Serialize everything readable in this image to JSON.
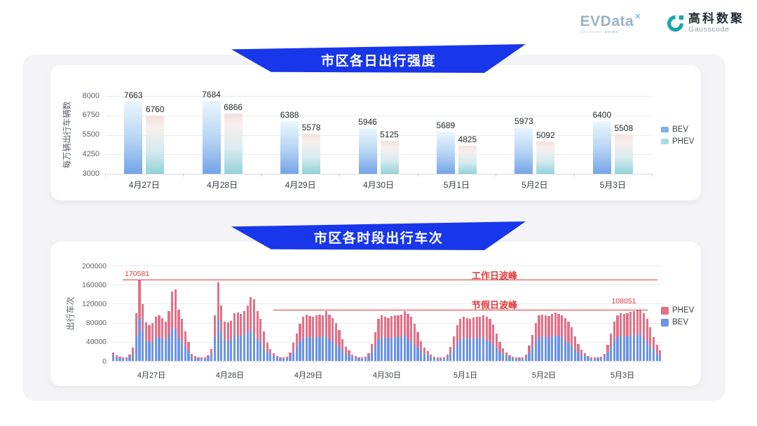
{
  "header": {
    "evdata": {
      "text": "EVData",
      "sup": "✕",
      "sub1": "SHANGHAI",
      "sub2": "CHINA"
    },
    "gausscode": {
      "cn": "高科数聚",
      "en": "Gausscode"
    }
  },
  "colors": {
    "banner_blue": "#1836ea",
    "annotation_red": "#e03a3a",
    "chart1_bev_gradient_top": "#eaf7fc",
    "chart1_bev_gradient_bottom": "#74a4e7",
    "chart1_phev_gradient_top": "#f3e0dc",
    "chart1_phev_gradient_bottom": "#93d2da",
    "legend1_bev": "#7fb0ea",
    "legend1_phev": "#a6dbe0",
    "chart2_bev": "#6b94e4",
    "chart2_phev": "#e17188",
    "gausscode_teal": "#18a6ad"
  },
  "chart_data": [
    {
      "type": "bar",
      "title": "市区各日出行强度",
      "ylabel": "每万辆出行车辆数",
      "categories": [
        "4月27日",
        "4月28日",
        "4月29日",
        "4月30日",
        "5月1日",
        "5月2日",
        "5月3日"
      ],
      "series": [
        {
          "name": "BEV",
          "values": [
            7663,
            7684,
            6388,
            5946,
            5689,
            5973,
            6400
          ]
        },
        {
          "name": "PHEV",
          "values": [
            6760,
            6866,
            5578,
            5125,
            4825,
            5092,
            5508
          ]
        }
      ],
      "ylim": [
        3000,
        8000
      ],
      "yticks": [
        3000,
        4250,
        5500,
        6750,
        8000
      ],
      "legend": [
        "BEV",
        "PHEV"
      ],
      "legend_position": "right",
      "grid": "horizontal"
    },
    {
      "type": "bar",
      "stacked": true,
      "title": "市区各时段出行车次",
      "ylabel": "出行车次",
      "categories": [
        "4月27日",
        "4月28日",
        "4月29日",
        "4月30日",
        "5月1日",
        "5月2日",
        "5月3日"
      ],
      "hours_per_day": 24,
      "ylim": [
        0,
        200000
      ],
      "yticks": [
        0,
        40000,
        80000,
        120000,
        160000,
        200000
      ],
      "legend": [
        "PHEV",
        "BEV"
      ],
      "legend_position": "right",
      "grid": "horizontal",
      "annotations": [
        {
          "label": "工作日波峰",
          "value": 170581,
          "value_label": "170581"
        },
        {
          "label": "节假日波峰",
          "value": 108051,
          "value_label": "108051"
        }
      ],
      "note": "hourly stacked values estimated from chart pixels",
      "series": [
        {
          "name": "BEV",
          "values_by_day": [
            [
              11200,
              7400,
              5600,
              4400,
              5000,
              7800,
              16000,
              52000,
              90000,
              62000,
              42100,
              39000,
              41600,
              48400,
              49900,
              46800,
              42600,
              54100,
              68200,
              67500,
              47500,
              40500,
              29800,
              20000
            ],
            [
              9300,
              6200,
              5000,
              4400,
              5000,
              7200,
              14300,
              49400,
              87500,
              60800,
              42600,
              42100,
              43700,
              52000,
              53000,
              51000,
              54100,
              60800,
              63000,
              58100,
              45800,
              40500,
              29800,
              19000
            ],
            [
              15500,
              9900,
              6800,
              5000,
              4300,
              5400,
              10300,
              19800,
              30700,
              40600,
              47800,
              50400,
              48900,
              47800,
              49400,
              50400,
              49900,
              54600,
              45600,
              40500,
              35200,
              29900,
              21600,
              15000
            ],
            [
              13600,
              8700,
              6200,
              5000,
              4300,
              5400,
              9100,
              18200,
              31800,
              45800,
              49900,
              48400,
              46800,
              48900,
              49900,
              49400,
              50400,
              54600,
              46100,
              41400,
              34300,
              27600,
              20200,
              14000
            ],
            [
              12400,
              8100,
              5600,
              4400,
              4300,
              4800,
              8000,
              15600,
              27600,
              39000,
              45800,
              47800,
              46800,
              45800,
              47300,
              48400,
              47800,
              49400,
              43700,
              39600,
              33400,
              26700,
              19200,
              13000
            ],
            [
              11200,
              7400,
              5600,
              4400,
              4300,
              4800,
              8000,
              16600,
              29200,
              41600,
              49400,
              50400,
              49900,
              48900,
              51000,
              53000,
              51000,
              49900,
              42300,
              36900,
              30800,
              23900,
              17300,
              12000
            ],
            [
              9900,
              6800,
              5000,
              4400,
              4300,
              5400,
              8600,
              17700,
              30700,
              42600,
              49400,
              52000,
              51000,
              52000,
              53600,
              54600,
              55100,
              56200,
              47000,
              39600,
              30800,
              23000,
              16300,
              11000
            ]
          ]
        },
        {
          "name": "PHEV",
          "values_by_day": [
            [
              6800,
              4600,
              3400,
              2600,
              3000,
              5200,
              12000,
              48000,
              80581,
              57000,
              38900,
              36000,
              38400,
              44600,
              46100,
              43200,
              39400,
              49900,
              76800,
              82500,
              60500,
              47500,
              32200,
              20000
            ],
            [
              5700,
              3800,
              3000,
              2600,
              3000,
              4800,
              10700,
              45600,
              77500,
              56200,
              39400,
              38900,
              40300,
              48000,
              49000,
              47000,
              49900,
              56200,
              71000,
              70900,
              58200,
              47500,
              32200,
              19000
            ],
            [
              9500,
              6100,
              4200,
              3000,
              2700,
              3600,
              7700,
              18200,
              27300,
              37400,
              44200,
              46600,
              45100,
              44200,
              45600,
              46600,
              46100,
              50400,
              51400,
              49500,
              44800,
              35100,
              23400,
              15000
            ],
            [
              8400,
              5300,
              3800,
              3000,
              2700,
              3600,
              6900,
              16800,
              28200,
              42200,
              46100,
              44600,
              43200,
              45100,
              46100,
              45600,
              46600,
              50400,
              51900,
              50600,
              43700,
              32400,
              21800,
              14000
            ],
            [
              7600,
              4900,
              3400,
              2600,
              2700,
              3200,
              6000,
              14400,
              24400,
              36000,
              42200,
              44200,
              43200,
              42200,
              43700,
              44600,
              44200,
              45600,
              49300,
              48400,
              42600,
              31300,
              20800,
              13000
            ],
            [
              6800,
              4600,
              3400,
              2600,
              2700,
              3200,
              6000,
              15400,
              25800,
              38400,
              45600,
              46600,
              46100,
              45100,
              47000,
              49000,
              47000,
              46100,
              47700,
              45100,
              39200,
              28100,
              18700,
              12000
            ],
            [
              6100,
              4200,
              3000,
              2600,
              2700,
              3600,
              6400,
              16300,
              27300,
              39400,
              45600,
              48000,
              47000,
              48000,
              49400,
              50400,
              50900,
              51851,
              53000,
              48400,
              39200,
              27000,
              17700,
              11000
            ]
          ]
        }
      ]
    }
  ]
}
